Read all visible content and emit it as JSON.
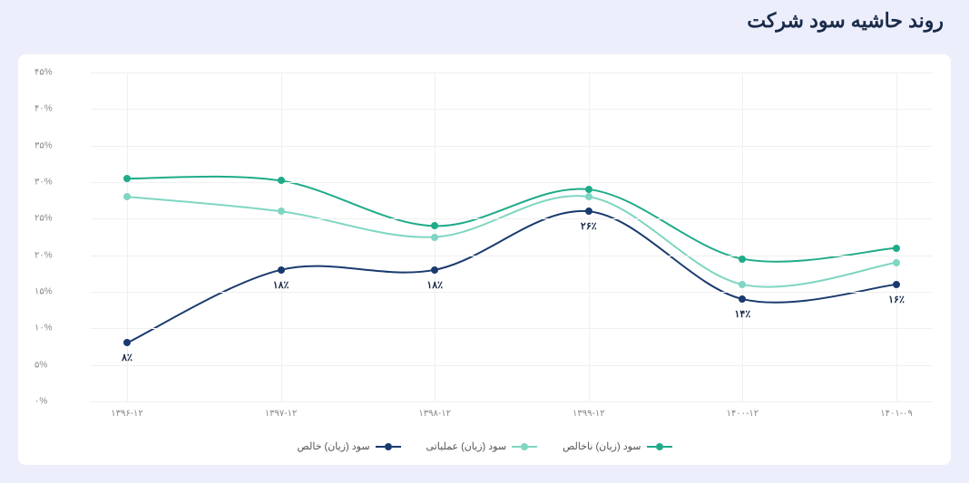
{
  "title": "روند حاشیه سود شرکت",
  "chart": {
    "type": "line",
    "background_color": "#ffffff",
    "page_background": "#edeefb",
    "grid_color": "#f0f0f0",
    "axis_label_color": "#888888",
    "data_label_color": "#1a2b4a",
    "title_color": "#1a2b4a",
    "title_fontsize": 22,
    "axis_fontsize": 10,
    "data_label_fontsize": 11,
    "ylim": [
      0,
      45
    ],
    "ytick_step": 5,
    "y_tick_labels": [
      "۰%",
      "۵%",
      "۱۰%",
      "۱۵%",
      "۲۰%",
      "۲۵%",
      "۳۰%",
      "۳۵%",
      "۴۰%",
      "۴۵%"
    ],
    "x_categories": [
      "۱۳۹۶-۱۲",
      "۱۳۹۷-۱۲",
      "۱۳۹۸-۱۲",
      "۱۳۹۹-۱۲",
      "۱۴۰۰-۱۲",
      "۱۴۰۱-۰۹"
    ],
    "series": [
      {
        "name": "سود (زیان) ناخالص",
        "color": "#1fab89",
        "line_width": 2,
        "marker": "circle",
        "marker_size": 8,
        "values": [
          30.5,
          30.2,
          24,
          29,
          19.5,
          21
        ]
      },
      {
        "name": "سود (زیان) عملیاتی",
        "color": "#7fd6c2",
        "line_width": 2,
        "marker": "circle",
        "marker_size": 8,
        "values": [
          28,
          26,
          22.5,
          28,
          16,
          19
        ]
      },
      {
        "name": "سود (زیان) خالص",
        "color": "#1a3a6e",
        "line_width": 2,
        "marker": "circle",
        "marker_size": 8,
        "values": [
          8,
          18,
          18,
          26,
          14,
          16
        ],
        "value_labels": [
          "۸٪",
          "۱۸٪",
          "۱۸٪",
          "۲۶٪",
          "۱۴٪",
          "۱۶٪"
        ]
      }
    ],
    "curve": "smooth",
    "interactable": false
  }
}
